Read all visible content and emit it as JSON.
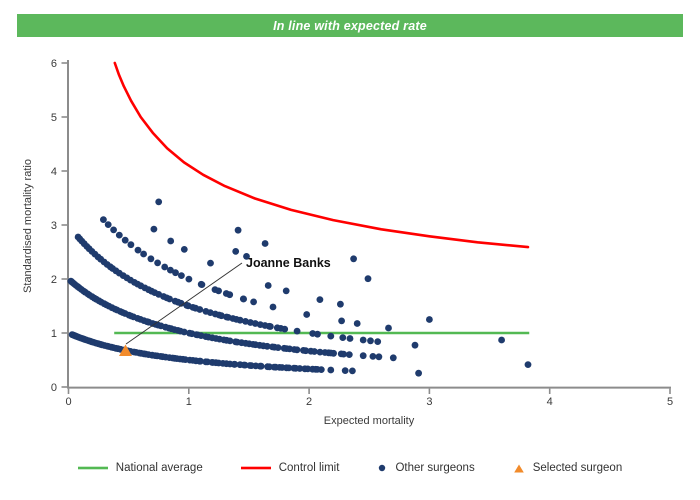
{
  "banner": {
    "text": "In line with expected rate",
    "bg_color": "#5cb85c",
    "text_color": "#ffffff"
  },
  "chart_data": {
    "type": "scatter",
    "title": "In line with expected rate",
    "xlabel": "Expected mortality",
    "ylabel": "Standardised mortality ratio",
    "xlim": [
      0,
      5
    ],
    "ylim": [
      0,
      6
    ],
    "xticks": [
      0,
      1,
      2,
      3,
      4,
      5
    ],
    "yticks": [
      0,
      1,
      2,
      3,
      4,
      5,
      6
    ],
    "grid": false,
    "axis_color": "#8c8c8c",
    "tick_label_color": "#3a3a3a",
    "national_average": {
      "label": "National average",
      "value": 1.0,
      "x_start": 0.38,
      "x_end": 3.83,
      "color": "#53b953"
    },
    "control_limit": {
      "label": "Control limit",
      "color": "#ff0000",
      "points": [
        [
          0.385,
          6.0
        ],
        [
          0.42,
          5.78
        ],
        [
          0.46,
          5.57
        ],
        [
          0.52,
          5.3
        ],
        [
          0.6,
          5.0
        ],
        [
          0.7,
          4.71
        ],
        [
          0.82,
          4.42
        ],
        [
          0.96,
          4.16
        ],
        [
          1.12,
          3.93
        ],
        [
          1.3,
          3.72
        ],
        [
          1.55,
          3.49
        ],
        [
          1.85,
          3.28
        ],
        [
          2.2,
          3.09
        ],
        [
          2.6,
          2.92
        ],
        [
          3.0,
          2.79
        ],
        [
          3.4,
          2.68
        ],
        [
          3.82,
          2.59
        ]
      ]
    },
    "selected_surgeon": {
      "label": "Selected surgeon",
      "name": "Joanne Banks",
      "x": 0.47,
      "y": 0.68,
      "color": "#f28b2b"
    },
    "other_surgeons": {
      "label": "Other surgeons",
      "color": "#1f3b6d",
      "model": "smr = deaths / (expected + 1)",
      "jitter_seed": 42,
      "dot_radius": 3.4,
      "bands": [
        {
          "deaths": 1,
          "x_start": 0.03,
          "x_end": 2.1,
          "count": 92,
          "power": 1.3,
          "extra_x": [
            2.18,
            2.3,
            2.36,
            2.91
          ]
        },
        {
          "deaths": 2,
          "x_start": 0.02,
          "x_end": 2.32,
          "count": 88,
          "power": 1.3,
          "extra_x": [
            2.45,
            2.53,
            2.58,
            2.7,
            3.82
          ]
        },
        {
          "deaths": 3,
          "x_start": 0.08,
          "x_end": 1.8,
          "count": 58,
          "power": 1.2,
          "extra_x": [
            1.9,
            2.03,
            2.07,
            2.18,
            2.28,
            2.34,
            2.45,
            2.51,
            2.57,
            2.88
          ]
        },
        {
          "deaths": 4,
          "x_start": 0.29,
          "x_end": 1.55,
          "count": 24,
          "power": 1.1,
          "extra_x": [
            1.7,
            1.98,
            2.27,
            2.4,
            2.66,
            3.6
          ]
        },
        {
          "deaths": 5,
          "x_start": 0.71,
          "x_end": 0.95,
          "count": 3,
          "power": 1.0,
          "extra_x": [
            1.18,
            1.66,
            1.81,
            2.09,
            2.26,
            3.0
          ]
        },
        {
          "deaths": 6,
          "x_start": 0.75,
          "x_end": 0.75,
          "count": 1,
          "power": 1.0,
          "extra_x": [
            1.39,
            1.48
          ]
        },
        {
          "deaths": 7,
          "x_start": 1.41,
          "x_end": 1.57,
          "count": 2,
          "power": 1.0,
          "extra_x": [
            2.49
          ]
        },
        {
          "deaths": 8,
          "x_start": 2.37,
          "x_end": 2.37,
          "count": 1,
          "power": 1.0,
          "extra_x": []
        }
      ]
    }
  },
  "legend": {
    "items": [
      {
        "type": "line",
        "color": "#53b953",
        "label": "National average"
      },
      {
        "type": "line",
        "color": "#ff0000",
        "label": "Control limit"
      },
      {
        "type": "dot",
        "color": "#1f3b6d",
        "label": "Other surgeons"
      },
      {
        "type": "triangle",
        "color": "#f28b2b",
        "label": "Selected surgeon"
      }
    ]
  }
}
